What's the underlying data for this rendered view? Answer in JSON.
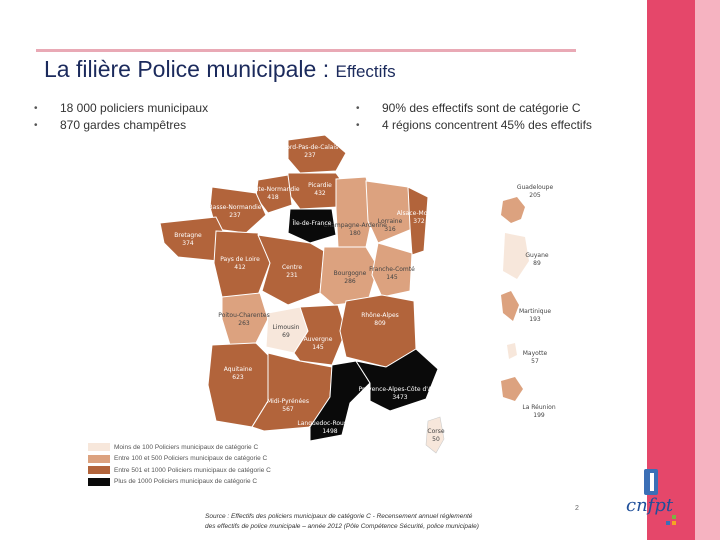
{
  "title": {
    "main": "La filière Police municipale :",
    "sub": "Effectifs"
  },
  "bullets_left": [
    "18 000 policiers municipaux",
    "870 gardes champêtres"
  ],
  "bullets_right": [
    "90% des effectifs sont de catégorie C",
    "4 régions concentrent 45% des effectifs"
  ],
  "regions": [
    {
      "name": "Nord-Pas-de-Calais",
      "value": "237"
    },
    {
      "name": "Picardie",
      "value": "432"
    },
    {
      "name": "Haute-Normandie",
      "value": "418"
    },
    {
      "name": "Basse-Normandie",
      "value": "237"
    },
    {
      "name": "Bretagne",
      "value": "374"
    },
    {
      "name": "Pays de Loire",
      "value": "412"
    },
    {
      "name": "Centre",
      "value": "231"
    },
    {
      "name": "Champagne-Ardenne",
      "value": "180"
    },
    {
      "name": "Lorraine",
      "value": "316"
    },
    {
      "name": "Alsace-Moselle",
      "value": "372"
    },
    {
      "name": "Franche-Comté",
      "value": "145"
    },
    {
      "name": "Bourgogne",
      "value": "286"
    },
    {
      "name": "Poitou-Charentes",
      "value": "263"
    },
    {
      "name": "Limousin",
      "value": "69"
    },
    {
      "name": "Auvergne",
      "value": "145"
    },
    {
      "name": "Rhône-Alpes",
      "value": "809"
    },
    {
      "name": "Aquitaine",
      "value": "623"
    },
    {
      "name": "Midi-Pyrénées",
      "value": "567"
    },
    {
      "name": "Languedoc-Roussillon",
      "value": "1498"
    },
    {
      "name": "Provence-Alpes-Côte d'Azur",
      "value": "3473"
    },
    {
      "name": "Corse",
      "value": "50"
    },
    {
      "name": "Île-de-France",
      "value": ""
    }
  ],
  "overseas": [
    {
      "name": "Guadeloupe",
      "value": "205"
    },
    {
      "name": "Guyane",
      "value": "89"
    },
    {
      "name": "Martinique",
      "value": "193"
    },
    {
      "name": "Mayotte",
      "value": "57"
    },
    {
      "name": "La Réunion",
      "value": "199"
    }
  ],
  "legend": [
    {
      "label": "Moins de 100 Policiers municipaux de catégorie C",
      "color": "#f7e7db"
    },
    {
      "label": "Entre 100 et 500 Policiers municipaux de catégorie C",
      "color": "#dca27f"
    },
    {
      "label": "Entre 501 et 1000 Policiers municipaux de catégorie C",
      "color": "#b2643b"
    },
    {
      "label": "Plus de 1000 Policiers municipaux de catégorie C",
      "color": "#0a0a0a"
    }
  ],
  "source": {
    "line1": "Source : Effectifs des policiers municipaux de catégorie C - Recensement annuel réglementé",
    "line2": "des effectifs de police municipale – année 2012 (Pôle Compétence Sécurité, police municipale)"
  },
  "page_number": "2",
  "logo_text": "cnfpt"
}
